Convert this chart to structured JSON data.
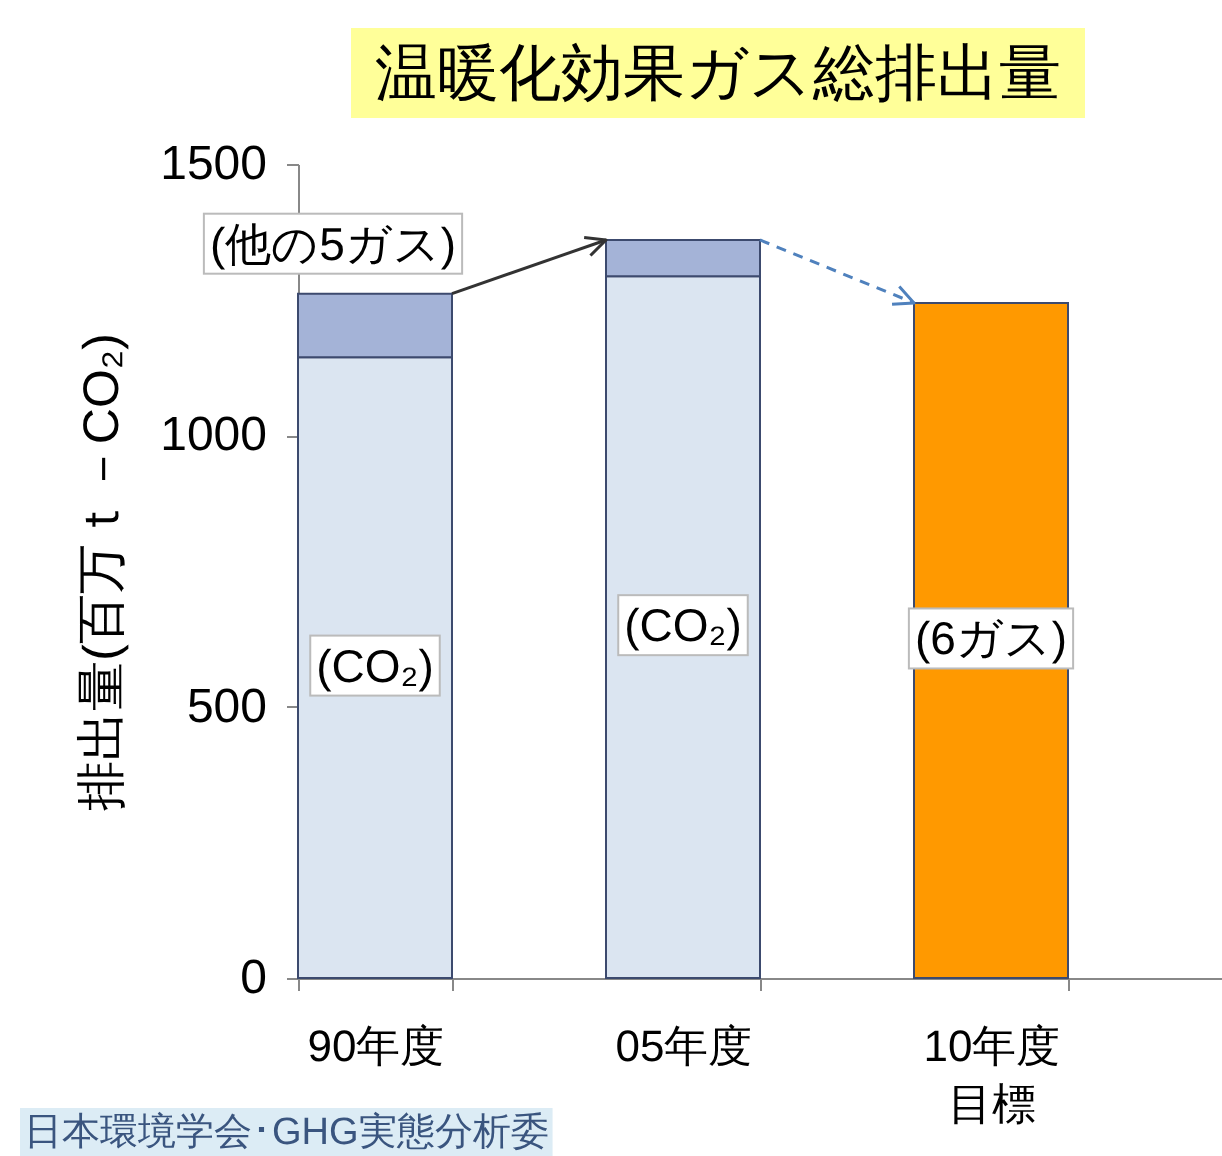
{
  "chart_data": {
    "type": "bar",
    "title": "温暖化効果ガス総排出量",
    "ylabel": "排出量(百万ｔ－CO₂)",
    "categories": [
      "90年度",
      "05年度",
      "10年度目標"
    ],
    "stacked": true,
    "series": [
      {
        "name": "(CO₂)",
        "color": "#dbe5f1",
        "values": [
          1144,
          1293,
          null
        ]
      },
      {
        "name": "(他の5ガス)",
        "color": "#a4b3d7",
        "values": [
          117,
          67,
          null
        ]
      },
      {
        "name": "(6ガス)",
        "color": "#ff9900",
        "values": [
          null,
          null,
          1244
        ]
      }
    ],
    "ylim": [
      0,
      1500
    ],
    "yticks": [
      0,
      500,
      1000,
      1500
    ],
    "annotations": [
      "日本環境学会･GHG実態分析委"
    ]
  }
}
